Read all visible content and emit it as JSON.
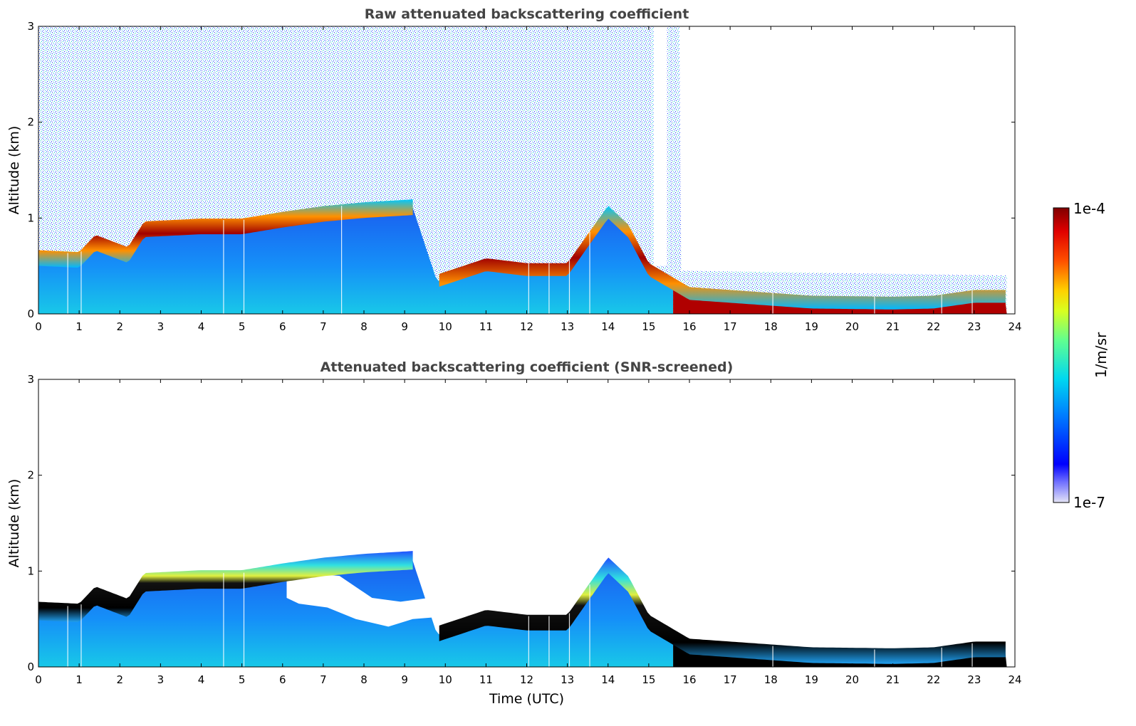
{
  "chart_data": [
    {
      "type": "heatmap",
      "title": "Raw attenuated backscattering coefficient",
      "xlabel": "",
      "ylabel": "Altitude (km)",
      "xlim": [
        0,
        24
      ],
      "ylim": [
        0,
        3
      ],
      "xticks": [
        "0",
        "1",
        "2",
        "3",
        "4",
        "5",
        "6",
        "7",
        "8",
        "9",
        "10",
        "11",
        "12",
        "13",
        "14",
        "15",
        "16",
        "17",
        "18",
        "19",
        "20",
        "21",
        "22",
        "23",
        "24"
      ],
      "yticks": [
        "0",
        "1",
        "2",
        "3"
      ],
      "layer_top_km": [
        [
          0,
          0.62
        ],
        [
          1,
          0.6
        ],
        [
          1.4,
          0.78
        ],
        [
          2.2,
          0.65
        ],
        [
          2.6,
          0.92
        ],
        [
          4.0,
          0.95
        ],
        [
          5.0,
          0.95
        ],
        [
          6.0,
          1.02
        ],
        [
          7.0,
          1.08
        ],
        [
          8.0,
          1.12
        ],
        [
          9.2,
          1.15
        ],
        [
          9.8,
          0.38
        ],
        [
          11.0,
          0.55
        ],
        [
          12.0,
          0.5
        ],
        [
          13.0,
          0.5
        ],
        [
          14.0,
          1.1
        ],
        [
          14.5,
          0.9
        ],
        [
          15.0,
          0.5
        ],
        [
          16.0,
          0.25
        ],
        [
          17.0,
          0.22
        ],
        [
          19.0,
          0.16
        ],
        [
          21.0,
          0.15
        ],
        [
          22.0,
          0.16
        ],
        [
          23.0,
          0.22
        ],
        [
          23.8,
          0.22
        ]
      ],
      "noise_top_km": [
        [
          0,
          3
        ],
        [
          15.1,
          3
        ],
        [
          15.8,
          3
        ],
        [
          15.8,
          0.45
        ],
        [
          23.8,
          0.4
        ]
      ]
    },
    {
      "type": "heatmap",
      "title": "Attenuated backscattering coefficient (SNR-screened)",
      "xlabel": "Time (UTC)",
      "ylabel": "Altitude (km)",
      "xlim": [
        0,
        24
      ],
      "ylim": [
        0,
        3
      ],
      "xticks": [
        "0",
        "1",
        "2",
        "3",
        "4",
        "5",
        "6",
        "7",
        "8",
        "9",
        "10",
        "11",
        "12",
        "13",
        "14",
        "15",
        "16",
        "17",
        "18",
        "19",
        "20",
        "21",
        "22",
        "23",
        "24"
      ],
      "yticks": [
        "0",
        "1",
        "2",
        "3"
      ]
    }
  ],
  "colorbar": {
    "max_label": "1e-4",
    "min_label": "1e-7",
    "unit_label": "1/m/sr"
  }
}
